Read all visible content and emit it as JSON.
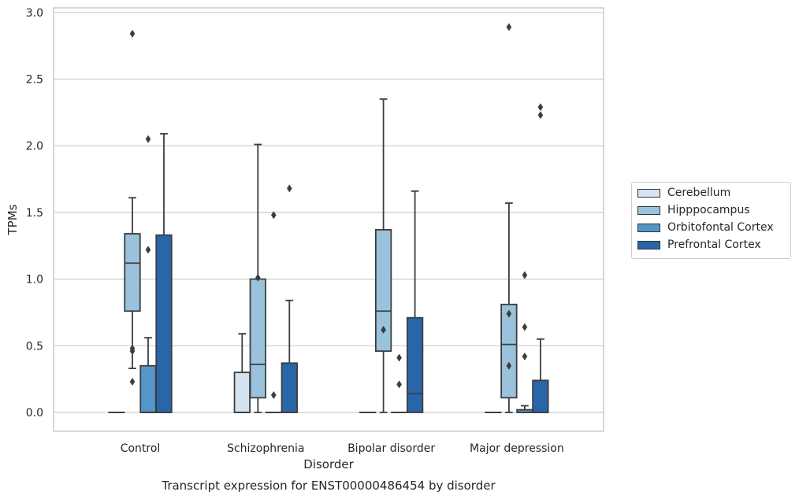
{
  "chart_data": {
    "type": "box",
    "title": "Transcript expression for ENST00000486454 by disorder",
    "xlabel": "Disorder",
    "ylabel": "TPMs",
    "ylim": [
      -0.14,
      3.04
    ],
    "yticks": [
      "0.0",
      "0.5",
      "1.0",
      "1.5",
      "2.0",
      "2.5",
      "3.0"
    ],
    "grid": true,
    "legend_position": "right",
    "categories": [
      "Control",
      "Schizophrenia",
      "Bipolar disorder",
      "Major depression"
    ],
    "series": [
      {
        "name": "Cerebellum",
        "color": "#d5e3f1",
        "boxes": [
          {
            "min": 0,
            "q1": 0,
            "median": 0,
            "q3": 0,
            "max": 0,
            "outliers": []
          },
          {
            "min": 0,
            "q1": 0,
            "median": 0,
            "q3": 0.3,
            "max": 0.59,
            "outliers": []
          },
          {
            "min": 0,
            "q1": 0,
            "median": 0,
            "q3": 0,
            "max": 0,
            "outliers": []
          },
          {
            "min": 0,
            "q1": 0,
            "median": 0,
            "q3": 0,
            "max": 0,
            "outliers": []
          }
        ]
      },
      {
        "name": "Hipppocampus",
        "color": "#9ac2dc",
        "boxes": [
          {
            "min": 0.33,
            "q1": 0.76,
            "median": 1.12,
            "q3": 1.34,
            "max": 1.61,
            "outliers": [
              0.23,
              0.46,
              0.48,
              2.84
            ]
          },
          {
            "min": 0,
            "q1": 0.11,
            "median": 0.36,
            "q3": 1.0,
            "max": 2.01,
            "outliers": [
              1.01
            ]
          },
          {
            "min": 0,
            "q1": 0.46,
            "median": 0.76,
            "q3": 1.37,
            "max": 2.35,
            "outliers": [
              0.62
            ]
          },
          {
            "min": 0,
            "q1": 0.11,
            "median": 0.51,
            "q3": 0.81,
            "max": 1.57,
            "outliers": [
              0.35,
              0.74,
              2.89
            ]
          }
        ]
      },
      {
        "name": "Orbitofontal Cortex",
        "color": "#5596c8",
        "boxes": [
          {
            "min": 0,
            "q1": 0,
            "median": 0,
            "q3": 0.35,
            "max": 0.56,
            "outliers": [
              1.22,
              2.05
            ]
          },
          {
            "min": 0,
            "q1": 0,
            "median": 0,
            "q3": 0,
            "max": 0,
            "outliers": [
              0.13,
              1.48
            ]
          },
          {
            "min": 0,
            "q1": 0,
            "median": 0,
            "q3": 0,
            "max": 0,
            "outliers": [
              0.21,
              0.41
            ]
          },
          {
            "min": 0,
            "q1": 0,
            "median": 0,
            "q3": 0.02,
            "max": 0.05,
            "outliers": [
              0.42,
              0.64,
              1.03
            ]
          }
        ]
      },
      {
        "name": "Prefrontal Cortex",
        "color": "#2866a9",
        "boxes": [
          {
            "min": 0,
            "q1": 0,
            "median": 0,
            "q3": 1.33,
            "max": 2.09,
            "outliers": []
          },
          {
            "min": 0,
            "q1": 0,
            "median": 0,
            "q3": 0.37,
            "max": 0.84,
            "outliers": [
              1.68
            ]
          },
          {
            "min": 0,
            "q1": 0,
            "median": 0.14,
            "q3": 0.71,
            "max": 1.66,
            "outliers": []
          },
          {
            "min": 0,
            "q1": 0,
            "median": 0,
            "q3": 0.24,
            "max": 0.55,
            "outliers": [
              2.23,
              2.29
            ]
          }
        ]
      }
    ]
  }
}
